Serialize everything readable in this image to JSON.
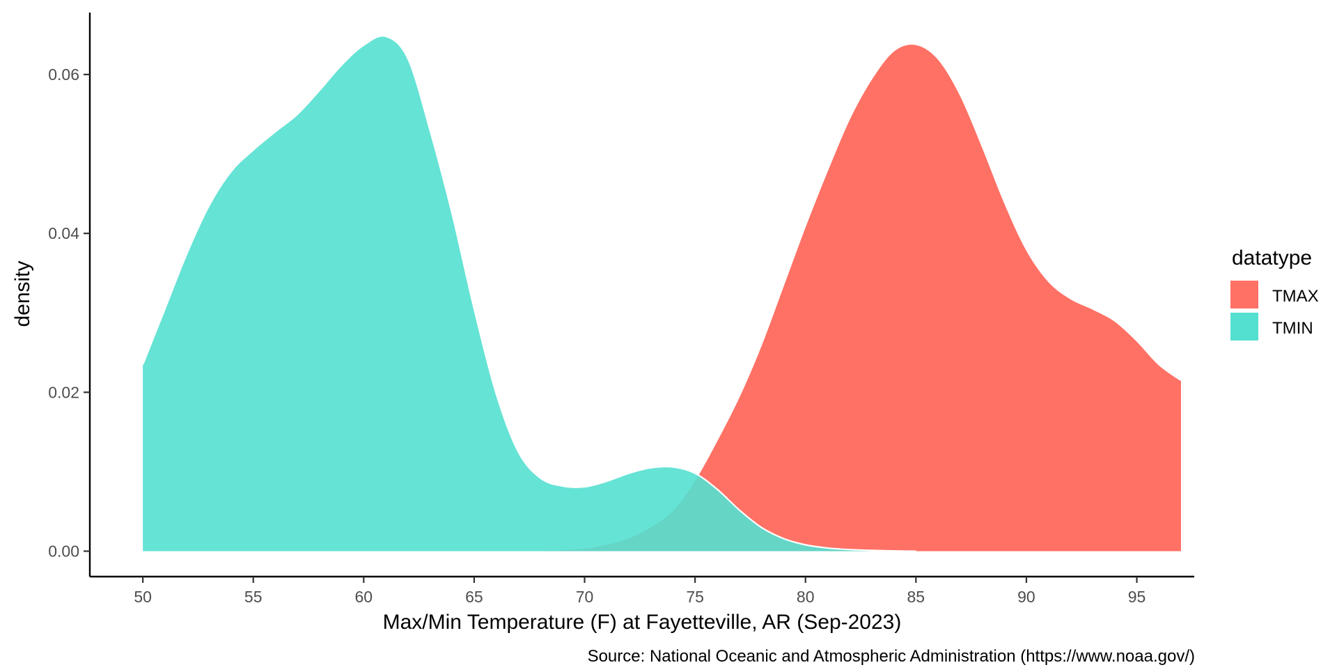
{
  "chart_data": {
    "type": "area",
    "subtype": "density",
    "title": "",
    "xlabel": "Max/Min Temperature (F) at Fayetteville, AR (Sep-2023)",
    "ylabel": "density",
    "caption": "Source: National Oceanic and Atmospheric Administration (https://www.noaa.gov/)",
    "xlim": [
      47.6,
      97.6
    ],
    "ylim": [
      -0.0032,
      0.0678
    ],
    "x_ticks": [
      50,
      55,
      60,
      65,
      70,
      75,
      80,
      85,
      90,
      95
    ],
    "y_ticks": [
      0.0,
      0.02,
      0.04,
      0.06
    ],
    "x_tick_labels": [
      "50",
      "55",
      "60",
      "65",
      "70",
      "75",
      "80",
      "85",
      "90",
      "95"
    ],
    "y_tick_labels": [
      "0.00",
      "0.02",
      "0.04",
      "0.06"
    ],
    "grid": false,
    "legend": {
      "title": "datatype",
      "position": "right",
      "items": [
        {
          "label": "TMAX",
          "color": "#F8766D"
        },
        {
          "label": "TMIN",
          "color": "#00BFC4"
        }
      ]
    },
    "series": [
      {
        "name": "TMAX",
        "color": "#FF7165",
        "x": [
          66,
          68,
          70,
          71,
          72,
          73,
          74,
          75,
          76,
          77,
          78,
          79,
          80,
          81,
          82,
          83,
          84,
          85,
          86,
          87,
          88,
          89,
          90,
          91,
          92,
          93,
          94,
          95,
          96,
          97
        ],
        "y": [
          0.0,
          0.0001,
          0.0004,
          0.0009,
          0.0017,
          0.0031,
          0.0052,
          0.009,
          0.014,
          0.0195,
          0.026,
          0.0335,
          0.041,
          0.048,
          0.0545,
          0.0595,
          0.063,
          0.0638,
          0.062,
          0.0575,
          0.051,
          0.044,
          0.038,
          0.034,
          0.0318,
          0.0305,
          0.029,
          0.0265,
          0.0235,
          0.0215
        ]
      },
      {
        "name": "TMIN",
        "color": "#54E0D0",
        "x": [
          50,
          51,
          52,
          53,
          54,
          55,
          56,
          57,
          58,
          59,
          60,
          61,
          62,
          63,
          64,
          65,
          66,
          67,
          68,
          69,
          70,
          71,
          72,
          73,
          74,
          75,
          76,
          77,
          78,
          79,
          80,
          81,
          82,
          83,
          84,
          85
        ],
        "y": [
          0.0235,
          0.0305,
          0.0375,
          0.0435,
          0.0478,
          0.0505,
          0.0528,
          0.055,
          0.058,
          0.0612,
          0.0637,
          0.0648,
          0.062,
          0.053,
          0.0425,
          0.0305,
          0.0198,
          0.0125,
          0.0092,
          0.0082,
          0.0081,
          0.0088,
          0.0098,
          0.0105,
          0.0106,
          0.0098,
          0.0078,
          0.0052,
          0.003,
          0.0016,
          0.0008,
          0.0004,
          0.0002,
          0.0001,
          3e-05,
          0.0
        ]
      }
    ]
  }
}
